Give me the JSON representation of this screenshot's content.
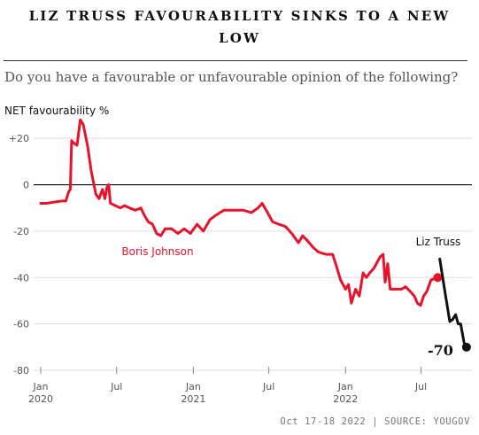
{
  "title_line1": "LIZ TRUSS FAVOURABILITY SINKS TO A NEW",
  "title_line2": "LOW",
  "subtitle": "Do you have a favourable or unfavourable opinion of the following?",
  "footer": "Oct 17-18 2022 | SOURCE: YOUGOV",
  "colors": {
    "johnson": "#e8132b",
    "truss": "#111111",
    "grid": "#dddddd",
    "zero": "#000000"
  },
  "chart_data": {
    "type": "line",
    "ylabel": "NET favourability %",
    "ylim": [
      -80,
      30
    ],
    "yticks": [
      20,
      0,
      -20,
      -40,
      -60,
      -80
    ],
    "ytick_labels": [
      "+20",
      "0",
      "-20",
      "-40",
      "-60",
      "-80"
    ],
    "xlim": [
      "2019-12-15",
      "2022-10-31"
    ],
    "xticks": [
      {
        "date": "2020-01-01",
        "label": [
          "Jan",
          "2020"
        ]
      },
      {
        "date": "2020-07-01",
        "label": [
          "Jul"
        ]
      },
      {
        "date": "2021-01-01",
        "label": [
          "Jan",
          "2021"
        ]
      },
      {
        "date": "2021-07-01",
        "label": [
          "Jul"
        ]
      },
      {
        "date": "2022-01-01",
        "label": [
          "Jan",
          "2022"
        ]
      },
      {
        "date": "2022-07-01",
        "label": [
          "Jul"
        ]
      }
    ],
    "series": [
      {
        "name": "Boris Johnson",
        "color": "#e8132b",
        "points": [
          [
            "2020-01-01",
            -8
          ],
          [
            "2020-01-15",
            -8
          ],
          [
            "2020-02-01",
            -7.5
          ],
          [
            "2020-02-20",
            -7
          ],
          [
            "2020-03-01",
            -7
          ],
          [
            "2020-03-08",
            -3
          ],
          [
            "2020-03-12",
            -2
          ],
          [
            "2020-03-15",
            19
          ],
          [
            "2020-03-20",
            18
          ],
          [
            "2020-03-28",
            17
          ],
          [
            "2020-04-05",
            28
          ],
          [
            "2020-04-12",
            26
          ],
          [
            "2020-04-22",
            17
          ],
          [
            "2020-05-01",
            6
          ],
          [
            "2020-05-12",
            -4
          ],
          [
            "2020-05-20",
            -6
          ],
          [
            "2020-05-28",
            -2
          ],
          [
            "2020-06-03",
            -6
          ],
          [
            "2020-06-08",
            -1
          ],
          [
            "2020-06-12",
            0
          ],
          [
            "2020-06-16",
            -8
          ],
          [
            "2020-06-28",
            -9
          ],
          [
            "2020-07-10",
            -10
          ],
          [
            "2020-07-20",
            -9
          ],
          [
            "2020-08-01",
            -10
          ],
          [
            "2020-08-15",
            -11
          ],
          [
            "2020-08-28",
            -10
          ],
          [
            "2020-09-05",
            -13
          ],
          [
            "2020-09-15",
            -16
          ],
          [
            "2020-09-25",
            -17
          ],
          [
            "2020-10-05",
            -21
          ],
          [
            "2020-10-15",
            -22
          ],
          [
            "2020-10-25",
            -19
          ],
          [
            "2020-11-10",
            -19
          ],
          [
            "2020-11-25",
            -21
          ],
          [
            "2020-12-10",
            -19
          ],
          [
            "2020-12-25",
            -21
          ],
          [
            "2021-01-10",
            -17
          ],
          [
            "2021-01-25",
            -20
          ],
          [
            "2021-02-10",
            -15
          ],
          [
            "2021-02-25",
            -13
          ],
          [
            "2021-03-15",
            -11
          ],
          [
            "2021-04-10",
            -11
          ],
          [
            "2021-05-01",
            -11
          ],
          [
            "2021-05-20",
            -12
          ],
          [
            "2021-06-05",
            -10
          ],
          [
            "2021-06-15",
            -8
          ],
          [
            "2021-06-28",
            -12
          ],
          [
            "2021-07-10",
            -16
          ],
          [
            "2021-07-25",
            -17
          ],
          [
            "2021-08-10",
            -18
          ],
          [
            "2021-08-25",
            -21
          ],
          [
            "2021-09-10",
            -25
          ],
          [
            "2021-09-20",
            -22
          ],
          [
            "2021-10-01",
            -24
          ],
          [
            "2021-10-15",
            -27
          ],
          [
            "2021-10-28",
            -29
          ],
          [
            "2021-11-15",
            -30
          ],
          [
            "2021-12-01",
            -30
          ],
          [
            "2021-12-10",
            -35
          ],
          [
            "2021-12-20",
            -41
          ],
          [
            "2022-01-01",
            -45
          ],
          [
            "2022-01-08",
            -43
          ],
          [
            "2022-01-15",
            -51
          ],
          [
            "2022-01-25",
            -45
          ],
          [
            "2022-02-03",
            -48
          ],
          [
            "2022-02-12",
            -38
          ],
          [
            "2022-02-20",
            -40
          ],
          [
            "2022-02-28",
            -38
          ],
          [
            "2022-03-10",
            -36
          ],
          [
            "2022-03-25",
            -31
          ],
          [
            "2022-04-01",
            -30
          ],
          [
            "2022-04-06",
            -42
          ],
          [
            "2022-04-12",
            -34
          ],
          [
            "2022-04-18",
            -45
          ],
          [
            "2022-05-01",
            -45
          ],
          [
            "2022-05-15",
            -45
          ],
          [
            "2022-05-25",
            -44
          ],
          [
            "2022-06-05",
            -46
          ],
          [
            "2022-06-15",
            -48
          ],
          [
            "2022-06-22",
            -51
          ],
          [
            "2022-06-30",
            -52
          ],
          [
            "2022-07-07",
            -48
          ],
          [
            "2022-07-15",
            -46
          ],
          [
            "2022-07-25",
            -41
          ],
          [
            "2022-08-10",
            -40
          ]
        ]
      },
      {
        "name": "Liz Truss",
        "color": "#111111",
        "points": [
          [
            "2022-08-15",
            -32
          ],
          [
            "2022-08-28",
            -47
          ],
          [
            "2022-09-08",
            -59
          ],
          [
            "2022-09-15",
            -58
          ],
          [
            "2022-09-22",
            -56
          ],
          [
            "2022-09-28",
            -60
          ],
          [
            "2022-10-04",
            -60
          ],
          [
            "2022-10-12",
            -68
          ],
          [
            "2022-10-18",
            -70
          ]
        ]
      }
    ],
    "annotations": [
      {
        "text": "Boris Johnson",
        "series": 0
      },
      {
        "text": "Liz Truss",
        "series": 1
      },
      {
        "text": "-70",
        "series": 1
      }
    ]
  }
}
